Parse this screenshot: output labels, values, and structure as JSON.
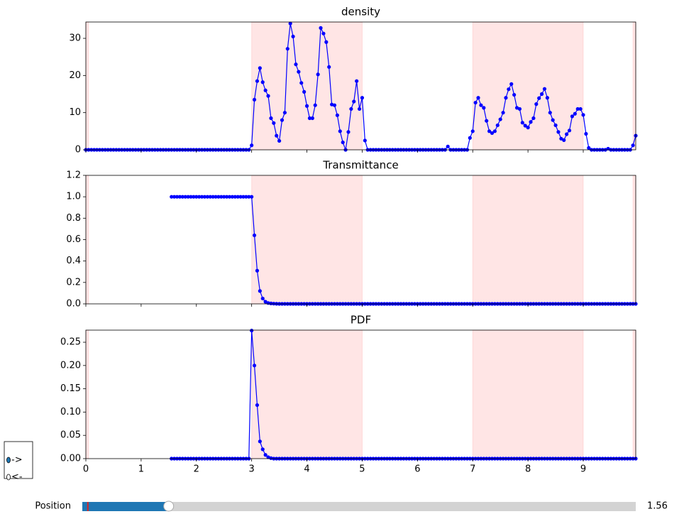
{
  "chart_data": [
    {
      "type": "line",
      "title": "density",
      "color": "blue",
      "span_color": "red",
      "span_alpha": 0.1,
      "spans": [
        [
          0,
          0.05
        ],
        [
          3,
          5
        ],
        [
          7,
          9
        ],
        [
          9.9,
          9.95
        ]
      ],
      "xlim": [
        0,
        9.95
      ],
      "xticks": [
        0,
        1,
        2,
        3,
        4,
        5,
        6,
        7,
        8,
        9
      ],
      "ylim": [
        0,
        34.4
      ],
      "yticks": [
        0,
        10,
        20,
        30
      ],
      "x": [
        0,
        0.05,
        0.1,
        0.15,
        0.2,
        0.25,
        0.3,
        0.35,
        0.4,
        0.45,
        0.5,
        0.55,
        0.6,
        0.65,
        0.7,
        0.75,
        0.8,
        0.85,
        0.9,
        0.95,
        1,
        1.05,
        1.1,
        1.15,
        1.2,
        1.25,
        1.3,
        1.35,
        1.4,
        1.45,
        1.5,
        1.55,
        1.6,
        1.65,
        1.7,
        1.75,
        1.8,
        1.85,
        1.9,
        1.95,
        2,
        2.05,
        2.1,
        2.15,
        2.2,
        2.25,
        2.3,
        2.35,
        2.4,
        2.45,
        2.5,
        2.55,
        2.6,
        2.65,
        2.7,
        2.75,
        2.8,
        2.85,
        2.9,
        2.95,
        3,
        3.05,
        3.1,
        3.15,
        3.2,
        3.25,
        3.3,
        3.35,
        3.4,
        3.45,
        3.5,
        3.55,
        3.6,
        3.65,
        3.7,
        3.75,
        3.8,
        3.85,
        3.9,
        3.95,
        4,
        4.05,
        4.1,
        4.15,
        4.2,
        4.25,
        4.3,
        4.35,
        4.4,
        4.45,
        4.5,
        4.55,
        4.6,
        4.65,
        4.7,
        4.75,
        4.8,
        4.85,
        4.9,
        4.95,
        5,
        5.05,
        5.1,
        5.15,
        5.2,
        5.25,
        5.3,
        5.35,
        5.4,
        5.45,
        5.5,
        5.55,
        5.6,
        5.65,
        5.7,
        5.75,
        5.8,
        5.85,
        5.9,
        5.95,
        6,
        6.05,
        6.1,
        6.15,
        6.2,
        6.25,
        6.3,
        6.35,
        6.4,
        6.45,
        6.5,
        6.55,
        6.6,
        6.65,
        6.7,
        6.75,
        6.8,
        6.85,
        6.9,
        6.95,
        7,
        7.05,
        7.1,
        7.15,
        7.2,
        7.25,
        7.3,
        7.35,
        7.4,
        7.45,
        7.5,
        7.55,
        7.6,
        7.65,
        7.7,
        7.75,
        7.8,
        7.85,
        7.9,
        7.95,
        8,
        8.05,
        8.1,
        8.15,
        8.2,
        8.25,
        8.3,
        8.35,
        8.4,
        8.45,
        8.5,
        8.55,
        8.6,
        8.65,
        8.7,
        8.75,
        8.8,
        8.85,
        8.9,
        8.95,
        9,
        9.05,
        9.1,
        9.15,
        9.2,
        9.25,
        9.3,
        9.35,
        9.4,
        9.45,
        9.5,
        9.55,
        9.6,
        9.65,
        9.7,
        9.75,
        9.8,
        9.85,
        9.9,
        9.95
      ],
      "values": [
        0,
        0,
        0,
        0,
        0,
        0,
        0,
        0,
        0,
        0,
        0,
        0,
        0,
        0,
        0,
        0,
        0,
        0,
        0,
        0,
        0,
        0,
        0,
        0,
        0,
        0,
        0,
        0,
        0,
        0,
        0,
        0,
        0,
        0,
        0,
        0,
        0,
        0,
        0,
        0,
        0,
        0,
        0,
        0,
        0,
        0,
        0,
        0,
        0,
        0,
        0,
        0,
        0,
        0,
        0,
        0,
        0,
        0,
        0,
        0,
        1.2,
        13.5,
        18.5,
        22,
        18.2,
        16,
        14.5,
        8.5,
        7.2,
        3.8,
        2.4,
        8,
        10,
        27.2,
        34,
        30.5,
        23,
        21,
        18,
        15.6,
        11.8,
        8.5,
        8.5,
        12,
        20.3,
        32.8,
        31.3,
        29,
        22.3,
        12.2,
        12,
        9.3,
        5,
        2,
        0,
        4.8,
        11,
        13,
        18.5,
        11,
        14,
        2.5,
        0,
        0,
        0,
        0,
        0,
        0,
        0,
        0,
        0,
        0,
        0,
        0,
        0,
        0,
        0,
        0,
        0,
        0,
        0,
        0,
        0,
        0,
        0,
        0,
        0,
        0,
        0,
        0,
        0,
        0.9,
        0,
        0,
        0,
        0,
        0,
        0,
        0,
        3.2,
        5,
        12.7,
        14,
        12,
        11.3,
        7.8,
        5,
        4.5,
        5,
        6.6,
        8.2,
        10,
        14,
        16.3,
        17.7,
        14.8,
        11.3,
        11,
        7.3,
        6.5,
        6,
        7.5,
        8.5,
        12.3,
        13.9,
        15,
        16.4,
        14,
        10,
        8,
        6.6,
        4.8,
        3,
        2.6,
        4.2,
        5.2,
        9,
        9.7,
        11,
        11,
        9.4,
        4.3,
        0.5,
        0,
        0,
        0,
        0,
        0,
        0,
        0.3,
        0,
        0,
        0,
        0,
        0,
        0,
        0,
        0,
        1.2,
        3.8
      ]
    },
    {
      "type": "line",
      "title": "Transmittance",
      "color": "blue",
      "span_color": "red",
      "span_alpha": 0.1,
      "spans": [
        [
          0,
          0.05
        ],
        [
          3,
          5
        ],
        [
          7,
          9
        ],
        [
          9.9,
          9.95
        ]
      ],
      "xlim": [
        0,
        9.95
      ],
      "xticks": [
        0,
        1,
        2,
        3,
        4,
        5,
        6,
        7,
        8,
        9
      ],
      "ylim": [
        0,
        1.2
      ],
      "yticks": [
        {
          "value": 0,
          "label": "0.0"
        },
        0.2,
        0.4,
        0.6,
        0.8,
        {
          "value": 1,
          "label": "1.0"
        },
        1.2
      ],
      "x": [
        1.55,
        1.6,
        1.65,
        1.7,
        1.75,
        1.8,
        1.85,
        1.9,
        1.95,
        2,
        2.05,
        2.1,
        2.15,
        2.2,
        2.25,
        2.3,
        2.35,
        2.4,
        2.45,
        2.5,
        2.55,
        2.6,
        2.65,
        2.7,
        2.75,
        2.8,
        2.85,
        2.9,
        2.95,
        3,
        3.05,
        3.1,
        3.15,
        3.2,
        3.25,
        3.3,
        3.35,
        3.4,
        3.45,
        3.5,
        3.55,
        3.6,
        3.65,
        3.7,
        3.75,
        3.8,
        3.85,
        3.9,
        3.95,
        4,
        4.05,
        4.1,
        4.15,
        4.2,
        4.25,
        4.3,
        4.35,
        4.4,
        4.45,
        4.5,
        4.55,
        4.6,
        4.65,
        4.7,
        4.75,
        4.8,
        4.85,
        4.9,
        4.95,
        5,
        5.05,
        5.1,
        5.15,
        5.2,
        5.25,
        5.3,
        5.35,
        5.4,
        5.45,
        5.5,
        5.55,
        5.6,
        5.65,
        5.7,
        5.75,
        5.8,
        5.85,
        5.9,
        5.95,
        6,
        6.05,
        6.1,
        6.15,
        6.2,
        6.25,
        6.3,
        6.35,
        6.4,
        6.45,
        6.5,
        6.55,
        6.6,
        6.65,
        6.7,
        6.75,
        6.8,
        6.85,
        6.9,
        6.95,
        7,
        7.05,
        7.1,
        7.15,
        7.2,
        7.25,
        7.3,
        7.35,
        7.4,
        7.45,
        7.5,
        7.55,
        7.6,
        7.65,
        7.7,
        7.75,
        7.8,
        7.85,
        7.9,
        7.95,
        8,
        8.05,
        8.1,
        8.15,
        8.2,
        8.25,
        8.3,
        8.35,
        8.4,
        8.45,
        8.5,
        8.55,
        8.6,
        8.65,
        8.7,
        8.75,
        8.8,
        8.85,
        8.9,
        8.95,
        9,
        9.05,
        9.1,
        9.15,
        9.2,
        9.25,
        9.3,
        9.35,
        9.4,
        9.45,
        9.5,
        9.55,
        9.6,
        9.65,
        9.7,
        9.75,
        9.8,
        9.85,
        9.9,
        9.95
      ],
      "values": [
        1,
        1,
        1,
        1,
        1,
        1,
        1,
        1,
        1,
        1,
        1,
        1,
        1,
        1,
        1,
        1,
        1,
        1,
        1,
        1,
        1,
        1,
        1,
        1,
        1,
        1,
        1,
        1,
        1,
        1,
        0.64,
        0.31,
        0.12,
        0.05,
        0.02,
        0.008,
        0.004,
        0.002,
        0.001,
        0,
        0,
        0,
        0,
        0,
        0,
        0,
        0,
        0,
        0,
        0,
        0,
        0,
        0,
        0,
        0,
        0,
        0,
        0,
        0,
        0,
        0,
        0,
        0,
        0,
        0,
        0,
        0,
        0,
        0,
        0,
        0,
        0,
        0,
        0,
        0,
        0,
        0,
        0,
        0,
        0,
        0,
        0,
        0,
        0,
        0,
        0,
        0,
        0,
        0,
        0,
        0,
        0,
        0,
        0,
        0,
        0,
        0,
        0,
        0,
        0,
        0,
        0,
        0,
        0,
        0,
        0,
        0,
        0,
        0,
        0,
        0,
        0,
        0,
        0,
        0,
        0,
        0,
        0,
        0,
        0,
        0,
        0,
        0,
        0,
        0,
        0,
        0,
        0,
        0,
        0,
        0,
        0,
        0,
        0,
        0,
        0,
        0,
        0,
        0,
        0,
        0,
        0,
        0,
        0,
        0,
        0,
        0,
        0,
        0,
        0,
        0,
        0,
        0,
        0,
        0,
        0,
        0,
        0,
        0,
        0,
        0,
        0,
        0,
        0,
        0,
        0,
        0,
        0,
        0
      ]
    },
    {
      "type": "line",
      "title": "PDF",
      "color": "blue",
      "span_color": "red",
      "span_alpha": 0.1,
      "spans": [
        [
          0,
          0.05
        ],
        [
          3,
          5
        ],
        [
          7,
          9
        ],
        [
          9.9,
          9.95
        ]
      ],
      "xlim": [
        0,
        9.95
      ],
      "xticks": [
        0,
        1,
        2,
        3,
        4,
        5,
        6,
        7,
        8,
        9
      ],
      "ylim": [
        0,
        0.276
      ],
      "yticks": [
        {
          "value": 0,
          "label": "0.00"
        },
        0.05,
        {
          "value": 0.1,
          "label": "0.10"
        },
        0.15,
        {
          "value": 0.2,
          "label": "0.20"
        },
        0.25
      ],
      "x": [
        1.55,
        1.6,
        1.65,
        1.7,
        1.75,
        1.8,
        1.85,
        1.9,
        1.95,
        2,
        2.05,
        2.1,
        2.15,
        2.2,
        2.25,
        2.3,
        2.35,
        2.4,
        2.45,
        2.5,
        2.55,
        2.6,
        2.65,
        2.7,
        2.75,
        2.8,
        2.85,
        2.9,
        2.95,
        3,
        3.05,
        3.1,
        3.15,
        3.2,
        3.25,
        3.3,
        3.35,
        3.4,
        3.45,
        3.5,
        3.55,
        3.6,
        3.65,
        3.7,
        3.75,
        3.8,
        3.85,
        3.9,
        3.95,
        4,
        4.05,
        4.1,
        4.15,
        4.2,
        4.25,
        4.3,
        4.35,
        4.4,
        4.45,
        4.5,
        4.55,
        4.6,
        4.65,
        4.7,
        4.75,
        4.8,
        4.85,
        4.9,
        4.95,
        5,
        5.05,
        5.1,
        5.15,
        5.2,
        5.25,
        5.3,
        5.35,
        5.4,
        5.45,
        5.5,
        5.55,
        5.6,
        5.65,
        5.7,
        5.75,
        5.8,
        5.85,
        5.9,
        5.95,
        6,
        6.05,
        6.1,
        6.15,
        6.2,
        6.25,
        6.3,
        6.35,
        6.4,
        6.45,
        6.5,
        6.55,
        6.6,
        6.65,
        6.7,
        6.75,
        6.8,
        6.85,
        6.9,
        6.95,
        7,
        7.05,
        7.1,
        7.15,
        7.2,
        7.25,
        7.3,
        7.35,
        7.4,
        7.45,
        7.5,
        7.55,
        7.6,
        7.65,
        7.7,
        7.75,
        7.8,
        7.85,
        7.9,
        7.95,
        8,
        8.05,
        8.1,
        8.15,
        8.2,
        8.25,
        8.3,
        8.35,
        8.4,
        8.45,
        8.5,
        8.55,
        8.6,
        8.65,
        8.7,
        8.75,
        8.8,
        8.85,
        8.9,
        8.95,
        9,
        9.05,
        9.1,
        9.15,
        9.2,
        9.25,
        9.3,
        9.35,
        9.4,
        9.45,
        9.5,
        9.55,
        9.6,
        9.65,
        9.7,
        9.75,
        9.8,
        9.85,
        9.9,
        9.95
      ],
      "values": [
        0,
        0,
        0,
        0,
        0,
        0,
        0,
        0,
        0,
        0,
        0,
        0,
        0,
        0,
        0,
        0,
        0,
        0,
        0,
        0,
        0,
        0,
        0,
        0,
        0,
        0,
        0,
        0,
        0,
        0.275,
        0.2,
        0.115,
        0.037,
        0.02,
        0.008,
        0.003,
        0.001,
        0,
        0,
        0,
        0,
        0,
        0,
        0,
        0,
        0,
        0,
        0,
        0,
        0,
        0,
        0,
        0,
        0,
        0,
        0,
        0,
        0,
        0,
        0,
        0,
        0,
        0,
        0,
        0,
        0,
        0,
        0,
        0,
        0,
        0,
        0,
        0,
        0,
        0,
        0,
        0,
        0,
        0,
        0,
        0,
        0,
        0,
        0,
        0,
        0,
        0,
        0,
        0,
        0,
        0,
        0,
        0,
        0,
        0,
        0,
        0,
        0,
        0,
        0,
        0,
        0,
        0,
        0,
        0,
        0,
        0,
        0,
        0,
        0,
        0,
        0,
        0,
        0,
        0,
        0,
        0,
        0,
        0,
        0,
        0,
        0,
        0,
        0,
        0,
        0,
        0,
        0,
        0,
        0,
        0,
        0,
        0,
        0,
        0,
        0,
        0,
        0,
        0,
        0,
        0,
        0,
        0,
        0,
        0,
        0,
        0,
        0,
        0,
        0,
        0,
        0,
        0,
        0,
        0,
        0,
        0,
        0,
        0,
        0,
        0,
        0,
        0,
        0,
        0,
        0,
        0,
        0,
        0
      ]
    }
  ],
  "controls": {
    "radio": {
      "options": [
        "->",
        "<-"
      ],
      "selected": 0
    },
    "slider": {
      "label": "Position",
      "value": 1.56,
      "min": 0,
      "max": 10,
      "initial": 0.1
    }
  }
}
